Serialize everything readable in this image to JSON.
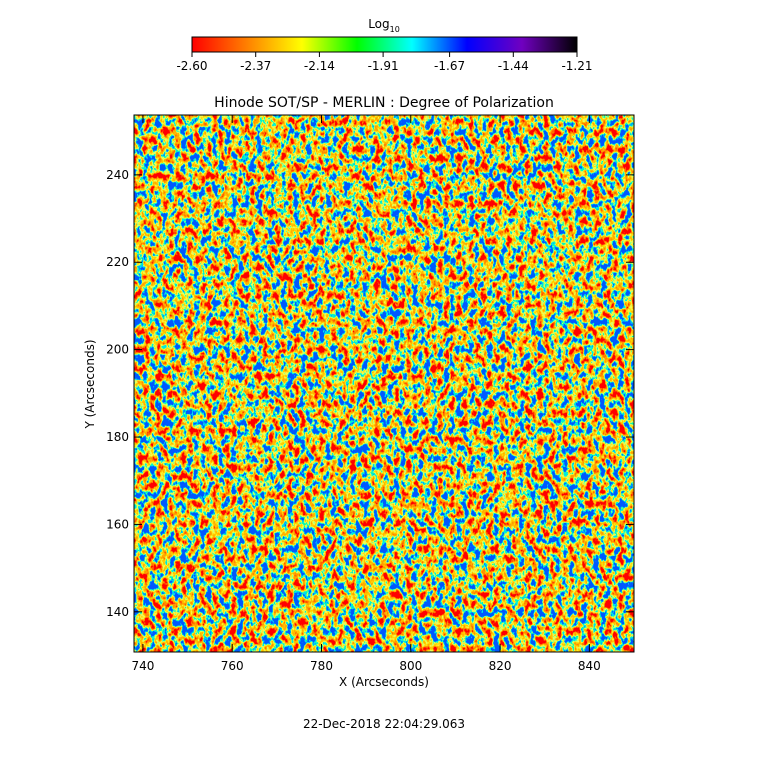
{
  "chart_data": {
    "type": "heatmap",
    "title": "Hinode SOT/SP - MERLIN : Degree of Polarization",
    "xlabel": "X (Arcseconds)",
    "ylabel": "Y (Arcseconds)",
    "footer": "22-Dec-2018 22:04:29.063",
    "xlim": [
      738,
      850
    ],
    "ylim": [
      130.8,
      253.7
    ],
    "xticks": [
      740,
      760,
      780,
      800,
      820,
      840
    ],
    "yticks": [
      140,
      160,
      180,
      200,
      220,
      240
    ],
    "colorbar": {
      "label": "Log",
      "label_subscript": "10",
      "lim": [
        -2.6,
        -1.21
      ],
      "ticks": [
        {
          "value": -2.6,
          "label": "-2.60"
        },
        {
          "value": -2.37,
          "label": "-2.37"
        },
        {
          "value": -2.14,
          "label": "-2.14"
        },
        {
          "value": -1.91,
          "label": "-1.91"
        },
        {
          "value": -1.67,
          "label": "-1.67"
        },
        {
          "value": -1.44,
          "label": "-1.44"
        },
        {
          "value": -1.21,
          "label": "-1.21"
        }
      ],
      "colormap": [
        "#ff0000",
        "#ff8000",
        "#ffff00",
        "#00ff00",
        "#00ffff",
        "#0000ff",
        "#7000c0",
        "#000000"
      ]
    }
  }
}
